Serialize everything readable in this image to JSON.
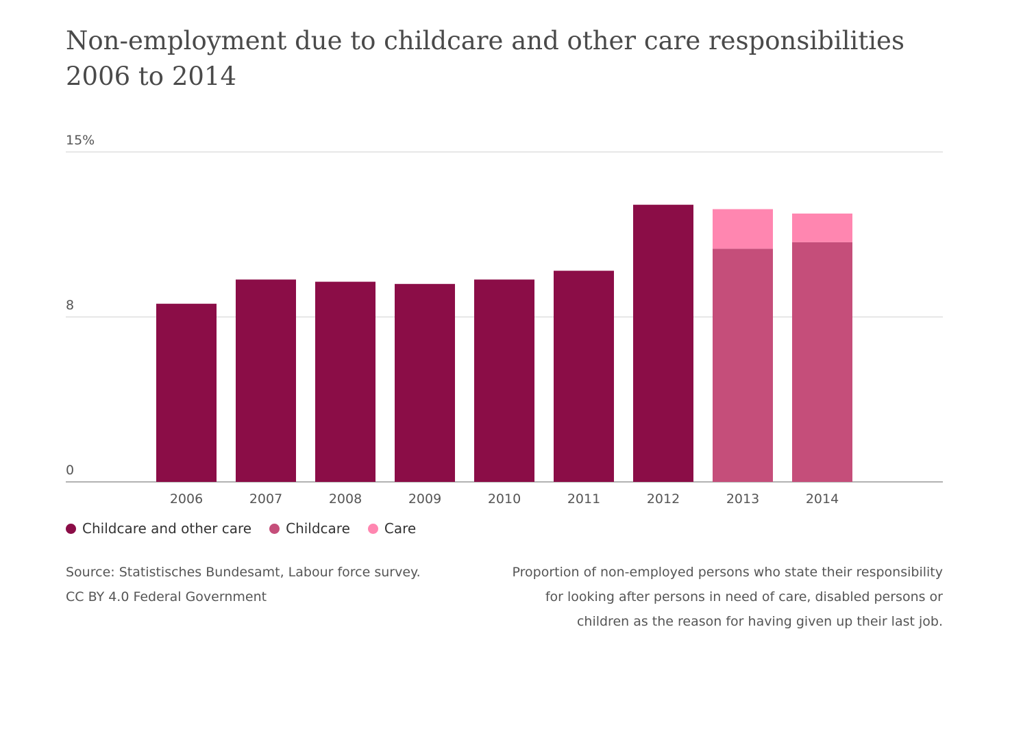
{
  "chart_data": {
    "type": "bar",
    "stacked": true,
    "title": "Non-employment due to childcare and other care responsibilities 2006 to 2014",
    "categories": [
      "2006",
      "2007",
      "2008",
      "2009",
      "2010",
      "2011",
      "2012",
      "2013",
      "2014"
    ],
    "series": [
      {
        "name": "Childcare and other care",
        "color": "#8b0d47",
        "values": [
          8.1,
          9.2,
          9.1,
          9.0,
          9.2,
          9.6,
          12.6,
          null,
          null
        ]
      },
      {
        "name": "Childcare",
        "color": "#c54e7a",
        "values": [
          null,
          null,
          null,
          null,
          null,
          null,
          null,
          10.6,
          10.9
        ]
      },
      {
        "name": "Care",
        "color": "#ff86b0",
        "values": [
          null,
          null,
          null,
          null,
          null,
          null,
          null,
          1.8,
          1.3
        ]
      }
    ],
    "yticks": [
      {
        "value": 0,
        "label": "0"
      },
      {
        "value": 7.5,
        "label": "8"
      },
      {
        "value": 15,
        "label": "15%"
      }
    ],
    "ylim": [
      0,
      15
    ],
    "grid": true,
    "legend_position": "bottom-left"
  },
  "source": {
    "line1": "Source: Statistisches Bundesamt, Labour force survey.",
    "line2": "CC BY 4.0 Federal Government"
  },
  "note": "Proportion of non-employed persons who state their responsibility for looking after persons in need of care, disabled persons or children as the reason for having given up their last job."
}
